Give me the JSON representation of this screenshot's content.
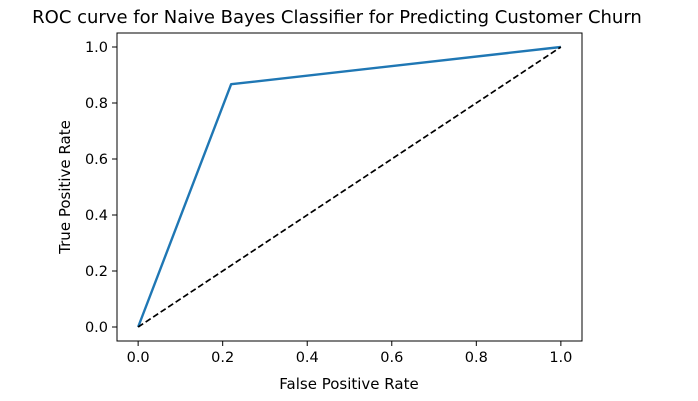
{
  "chart_data": {
    "type": "line",
    "title": "ROC curve for Naive Bayes Classifier for Predicting Customer Churn",
    "xlabel": "False Positive Rate",
    "ylabel": "True Positive Rate",
    "xlim": [
      -0.05,
      1.05
    ],
    "ylim": [
      -0.05,
      1.05
    ],
    "xticks": [
      0.0,
      0.2,
      0.4,
      0.6,
      0.8,
      1.0
    ],
    "yticks": [
      0.0,
      0.2,
      0.4,
      0.6,
      0.8,
      1.0
    ],
    "tick_format_decimals": 1,
    "grid": false,
    "legend": "none",
    "series": [
      {
        "style": "solid",
        "color": "#1f77b4",
        "x": [
          0.0,
          0.22,
          1.0
        ],
        "y": [
          0.0,
          0.867,
          1.0
        ]
      },
      {
        "style": "dashed",
        "color": "#000000",
        "x": [
          0.0,
          1.0
        ],
        "y": [
          0.0,
          1.0
        ]
      }
    ]
  }
}
